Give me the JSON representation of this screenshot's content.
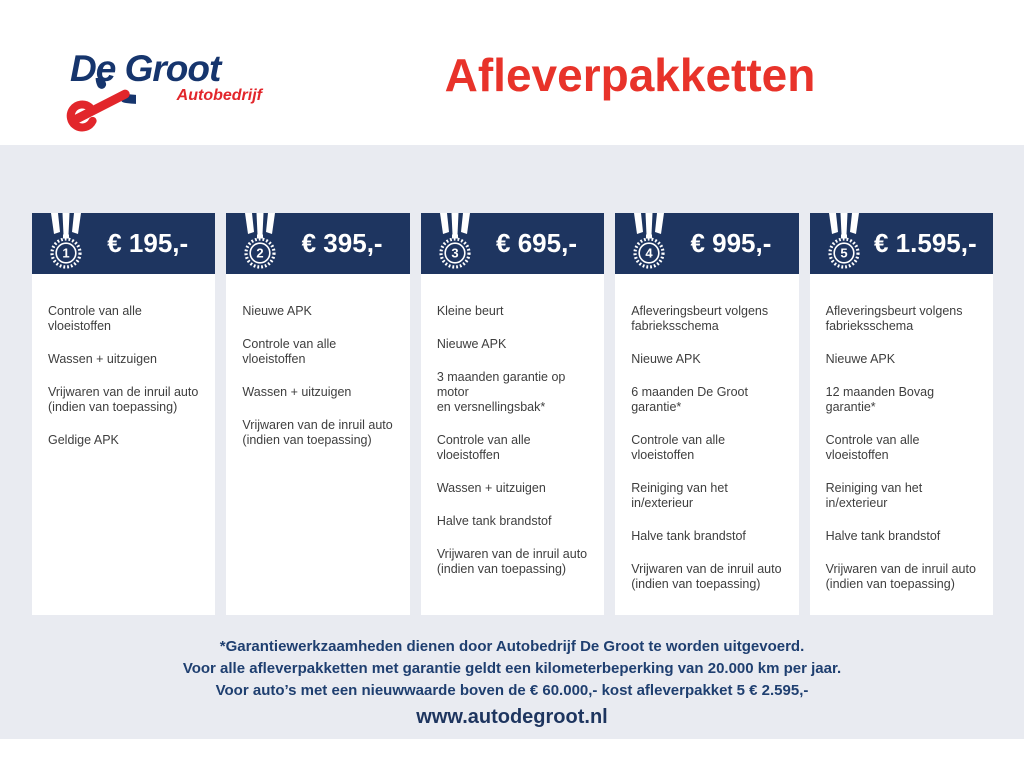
{
  "colors": {
    "header_navy": "#1e3560",
    "title_red": "#e8332a",
    "band_gray": "#e9ebf1",
    "footer_navy": "#1f3f70"
  },
  "logo": {
    "name": "De Groot",
    "subtitle": "Autobedrijf"
  },
  "header": {
    "title": "Afleverpakketten"
  },
  "packages": [
    {
      "number": "1",
      "price": "€ 195,-",
      "features": [
        "Controle van alle vloeistoffen",
        "Wassen + uitzuigen",
        "Vrijwaren van de inruil auto\n(indien van toepassing)",
        "Geldige APK"
      ]
    },
    {
      "number": "2",
      "price": "€ 395,-",
      "features": [
        "Nieuwe APK",
        "Controle van alle vloeistoffen",
        "Wassen + uitzuigen",
        "Vrijwaren van de inruil auto\n(indien van toepassing)"
      ]
    },
    {
      "number": "3",
      "price": "€ 695,-",
      "features": [
        "Kleine beurt",
        "Nieuwe APK",
        "3 maanden garantie op motor\nen versnellingsbak*",
        "Controle van alle vloeistoffen",
        "Wassen + uitzuigen",
        "Halve tank brandstof",
        "Vrijwaren van de inruil auto\n(indien van toepassing)"
      ]
    },
    {
      "number": "4",
      "price": "€ 995,-",
      "features": [
        "Afleveringsbeurt volgens\nfabrieksschema",
        "Nieuwe APK",
        "6 maanden De Groot garantie*",
        "Controle van alle vloeistoffen",
        "Reiniging van het in/exterieur",
        "Halve tank brandstof",
        "Vrijwaren van de inruil auto\n(indien van toepassing)"
      ]
    },
    {
      "number": "5",
      "price": "€ 1.595,-",
      "features": [
        "Afleveringsbeurt volgens\nfabrieksschema",
        "Nieuwe APK",
        "12 maanden Bovag garantie*",
        "Controle van alle vloeistoffen",
        "Reiniging van het in/exterieur",
        "Halve tank brandstof",
        "Vrijwaren van de inruil auto\n(indien van toepassing)"
      ]
    }
  ],
  "footer": {
    "notes": [
      "*Garantiewerkzaamheden dienen door Autobedrijf De Groot te worden uitgevoerd.",
      "Voor alle afleverpakketten met garantie geldt een kilometerbeperking van 20.000 km per jaar.",
      "Voor auto’s met een nieuwwaarde boven de € 60.000,- kost afleverpakket 5 € 2.595,-"
    ],
    "website": "www.autodegroot.nl"
  }
}
